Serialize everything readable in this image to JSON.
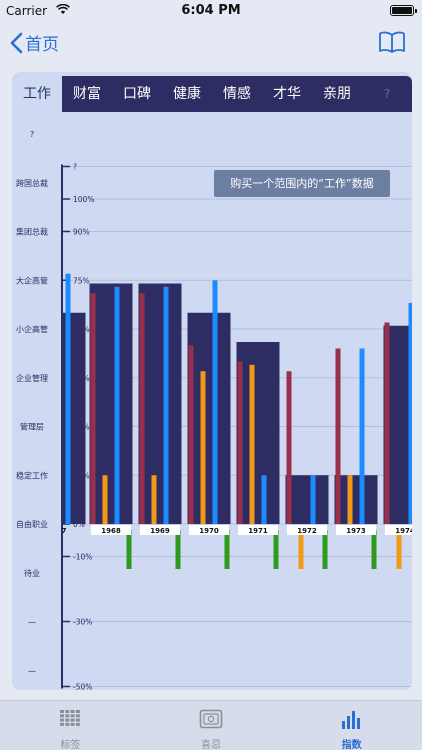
{
  "status_bar": {
    "carrier": "Carrier",
    "time": "6:04 PM"
  },
  "nav": {
    "back_label": "首页",
    "back_icon": "chevron-left-icon",
    "right_icon": "book-icon"
  },
  "tabs": [
    {
      "label": "工作",
      "active": true
    },
    {
      "label": "财富"
    },
    {
      "label": "口碑"
    },
    {
      "label": "健康"
    },
    {
      "label": "情感"
    },
    {
      "label": "才华"
    },
    {
      "label": "亲朋"
    },
    {
      "label": "?",
      "dim": true
    }
  ],
  "buy_button": "购买一个范围内的“工作”数据",
  "info_icon": "i",
  "tab_bar": [
    {
      "label": "标签",
      "icon": "grid-icon"
    },
    {
      "label": "喜忌",
      "icon": "photo-icon"
    },
    {
      "label": "指数",
      "icon": "bar-chart-icon",
      "active": true
    }
  ],
  "colors": {
    "background_bar": "#2d2c63",
    "red": "#9a2f4c",
    "orange": "#f29a16",
    "blue": "#1a8cff",
    "green": "#2e9a1e"
  },
  "chart_data": {
    "type": "bar",
    "categories": [
      "7",
      "1968",
      "1969",
      "1970",
      "1971",
      "1972",
      "1973",
      "1974"
    ],
    "ylim": [
      -50,
      110
    ],
    "yticks": [
      {
        "value": 110,
        "label": "?"
      },
      {
        "value": 100,
        "label": "100%"
      },
      {
        "value": 90,
        "label": "90%"
      },
      {
        "value": 75,
        "label": "75%"
      },
      {
        "value": 60,
        "label": "60%"
      },
      {
        "value": 45,
        "label": "45%"
      },
      {
        "value": 30,
        "label": "30%"
      },
      {
        "value": 15,
        "label": "15%"
      },
      {
        "value": 0,
        "label": "0%"
      },
      {
        "value": -10,
        "label": "-10%"
      },
      {
        "value": -30,
        "label": "-30%"
      },
      {
        "value": -50,
        "label": "-50%"
      }
    ],
    "ycategories": [
      {
        "value": 120,
        "label": "?"
      },
      {
        "value": 105,
        "label": "跨国总裁"
      },
      {
        "value": 90,
        "label": "集团总裁"
      },
      {
        "value": 75,
        "label": "大企高管"
      },
      {
        "value": 60,
        "label": "小企高管"
      },
      {
        "value": 45,
        "label": "企业管理"
      },
      {
        "value": 30,
        "label": "管理层"
      },
      {
        "value": 15,
        "label": "稳定工作"
      },
      {
        "value": 0,
        "label": "自由职业"
      },
      {
        "value": -15,
        "label": "待业"
      },
      {
        "value": -30,
        "label": "—"
      },
      {
        "value": -45,
        "label": "—"
      }
    ],
    "background": [
      65,
      74,
      74,
      65,
      56,
      15,
      15,
      61
    ],
    "series": [
      {
        "color": "#9a2f4c",
        "values": [
          null,
          71,
          71,
          55,
          50,
          47,
          54,
          62
        ]
      },
      {
        "color": "#f29a16",
        "values": [
          null,
          15,
          15,
          47,
          49,
          -12,
          15,
          -12
        ]
      },
      {
        "color": "#1a8cff",
        "values": [
          77,
          73,
          73,
          75,
          15,
          15,
          54,
          68
        ]
      },
      {
        "color": "#2e9a1e",
        "values": [
          null,
          -12,
          -12,
          -12,
          -12,
          -12,
          -12,
          15
        ]
      }
    ]
  }
}
